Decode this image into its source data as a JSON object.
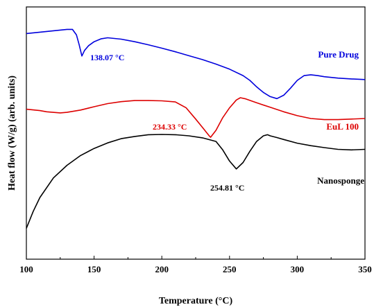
{
  "chart_data": {
    "type": "line",
    "title": "",
    "xlabel": "Temperature (°C)",
    "ylabel": "Heat flow (W/g) (arb. units)",
    "xlim": [
      100,
      350
    ],
    "xticks": [
      100,
      150,
      200,
      250,
      300,
      350
    ],
    "xtick_labels": [
      "100",
      "150",
      "200",
      "250",
      "300",
      "350"
    ],
    "y_tick_labels_shown": false,
    "grid": false,
    "legend": "inline-labels",
    "series": [
      {
        "name": "Pure Drug",
        "color": "#0000dd",
        "x": [
          100,
          110,
          120,
          130,
          134,
          137,
          139,
          141,
          143,
          146,
          150,
          155,
          160,
          170,
          180,
          190,
          200,
          210,
          220,
          230,
          240,
          250,
          260,
          265,
          270,
          275,
          280,
          285,
          290,
          295,
          300,
          305,
          310,
          315,
          320,
          330,
          340,
          350
        ],
        "y": [
          25.5,
          26.0,
          26.5,
          27.0,
          27.0,
          25.0,
          21.5,
          17.5,
          19.5,
          21.2,
          22.6,
          23.6,
          24.0,
          23.5,
          22.6,
          21.5,
          20.3,
          19.0,
          17.6,
          16.2,
          14.6,
          12.8,
          10.5,
          8.8,
          6.5,
          4.5,
          3.0,
          2.3,
          3.5,
          6.0,
          8.8,
          10.5,
          10.8,
          10.5,
          10.1,
          9.6,
          9.3,
          9.1
        ]
      },
      {
        "name": "EuL 100",
        "color": "#dd0000",
        "x": [
          100,
          110,
          115,
          125,
          130,
          140,
          150,
          160,
          170,
          180,
          190,
          200,
          210,
          218,
          225,
          230,
          235,
          236,
          240,
          245,
          250,
          255,
          258,
          262,
          270,
          280,
          290,
          300,
          310,
          320,
          330,
          340,
          350
        ],
        "y": [
          -1.5,
          -2.0,
          -2.4,
          -2.8,
          -2.6,
          -1.8,
          -0.6,
          0.5,
          1.2,
          1.6,
          1.6,
          1.5,
          1.1,
          -1.0,
          -5.0,
          -8.0,
          -11.0,
          -11.5,
          -9.0,
          -4.5,
          -1.0,
          1.8,
          2.6,
          2.2,
          0.8,
          -0.8,
          -2.4,
          -3.8,
          -4.8,
          -5.2,
          -5.2,
          -5.0,
          -4.8
        ]
      },
      {
        "name": "Nanosponge",
        "color": "#000000",
        "x": [
          100,
          105,
          110,
          120,
          130,
          140,
          150,
          160,
          170,
          180,
          190,
          200,
          210,
          220,
          230,
          240,
          245,
          250,
          255,
          260,
          265,
          270,
          275,
          278,
          280,
          285,
          290,
          300,
          310,
          320,
          330,
          340,
          350
        ],
        "y": [
          -44.0,
          -38.0,
          -33.0,
          -26.0,
          -21.5,
          -18.0,
          -15.5,
          -13.5,
          -12.0,
          -11.2,
          -10.6,
          -10.5,
          -10.6,
          -11.0,
          -11.7,
          -13.0,
          -16.0,
          -20.0,
          -22.8,
          -20.5,
          -16.5,
          -13.0,
          -11.0,
          -10.6,
          -11.0,
          -11.6,
          -12.3,
          -13.6,
          -14.5,
          -15.2,
          -15.8,
          -16.0,
          -15.8
        ]
      }
    ],
    "annotations": [
      {
        "text": "138.07 °C",
        "series": "Pure Drug",
        "x": 141,
        "y": 17.5
      },
      {
        "text": "234.33 °C",
        "series": "EuL 100",
        "x": 236,
        "y": -11.5
      },
      {
        "text": "254.81 °C",
        "series": "Nanosponge",
        "x": 255,
        "y": -22.8
      }
    ]
  }
}
